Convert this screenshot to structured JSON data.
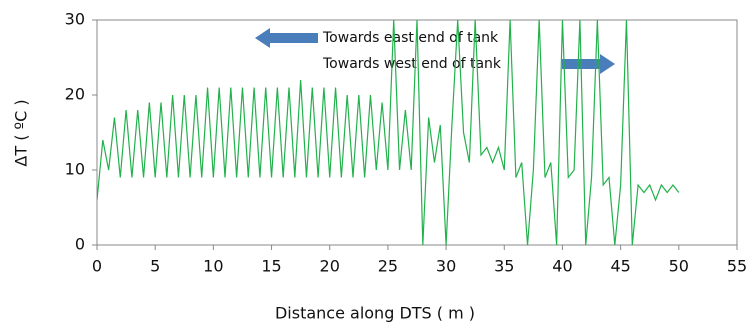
{
  "chart_data": {
    "type": "line",
    "y_label": "ΔT ( ºC )",
    "x_label": "Distance along DTS ( m )",
    "annotations": [
      "Towards east end of tank",
      "Towards west end of tank"
    ],
    "x": [
      0,
      0.5,
      1,
      1.5,
      2,
      2.5,
      3,
      3.5,
      4,
      4.5,
      5,
      5.5,
      6,
      6.5,
      7,
      7.5,
      8,
      8.5,
      9,
      9.5,
      10,
      10.5,
      11,
      11.5,
      12,
      12.5,
      13,
      13.5,
      14,
      14.5,
      15,
      15.5,
      16,
      16.5,
      17,
      17.5,
      18,
      18.5,
      19,
      19.5,
      20,
      20.5,
      21,
      21.5,
      22,
      22.5,
      23,
      23.5,
      24,
      24.5,
      25,
      25.5,
      26,
      26.5,
      27,
      27.5,
      28,
      28.5,
      29,
      29.5,
      30,
      30.5,
      31,
      31.5,
      32,
      32.5,
      33,
      33.5,
      34,
      34.5,
      35,
      35.5,
      36,
      36.5,
      37,
      37.5,
      38,
      38.5,
      39,
      39.5,
      40,
      40.5,
      41,
      41.5,
      42,
      42.5,
      43,
      43.5,
      44,
      44.5,
      45,
      45.5,
      46,
      46.5,
      47,
      47.5,
      48,
      48.5,
      49,
      49.5,
      50
    ],
    "series": [
      {
        "color": "#22b14c",
        "values": [
          6,
          14,
          10,
          17,
          9,
          18,
          9,
          18,
          9,
          19,
          9,
          19,
          9,
          20,
          9,
          20,
          9,
          20,
          9,
          21,
          9,
          21,
          9,
          21,
          9,
          21,
          9,
          21,
          9,
          21,
          9,
          21,
          9,
          21,
          9,
          22,
          9,
          21,
          9,
          21,
          9,
          21,
          9,
          20,
          9,
          20,
          9,
          20,
          10,
          19,
          10,
          30,
          10,
          18,
          10,
          30,
          0,
          17,
          11,
          16,
          0,
          16,
          30,
          15,
          11,
          30,
          12,
          13,
          11,
          13,
          10,
          30,
          9,
          11,
          0,
          10,
          30,
          9,
          11,
          0,
          30,
          9,
          10,
          30,
          0,
          9,
          30,
          8,
          9,
          0,
          8,
          30,
          0,
          8,
          7,
          8,
          6,
          8,
          7,
          8,
          7
        ]
      }
    ],
    "xlim": [
      0,
      55
    ],
    "xticks": [
      0,
      5,
      10,
      15,
      20,
      25,
      30,
      35,
      40,
      45,
      50,
      55
    ],
    "ylim": [
      0,
      30
    ],
    "yticks": [
      0,
      10,
      20,
      30
    ]
  }
}
